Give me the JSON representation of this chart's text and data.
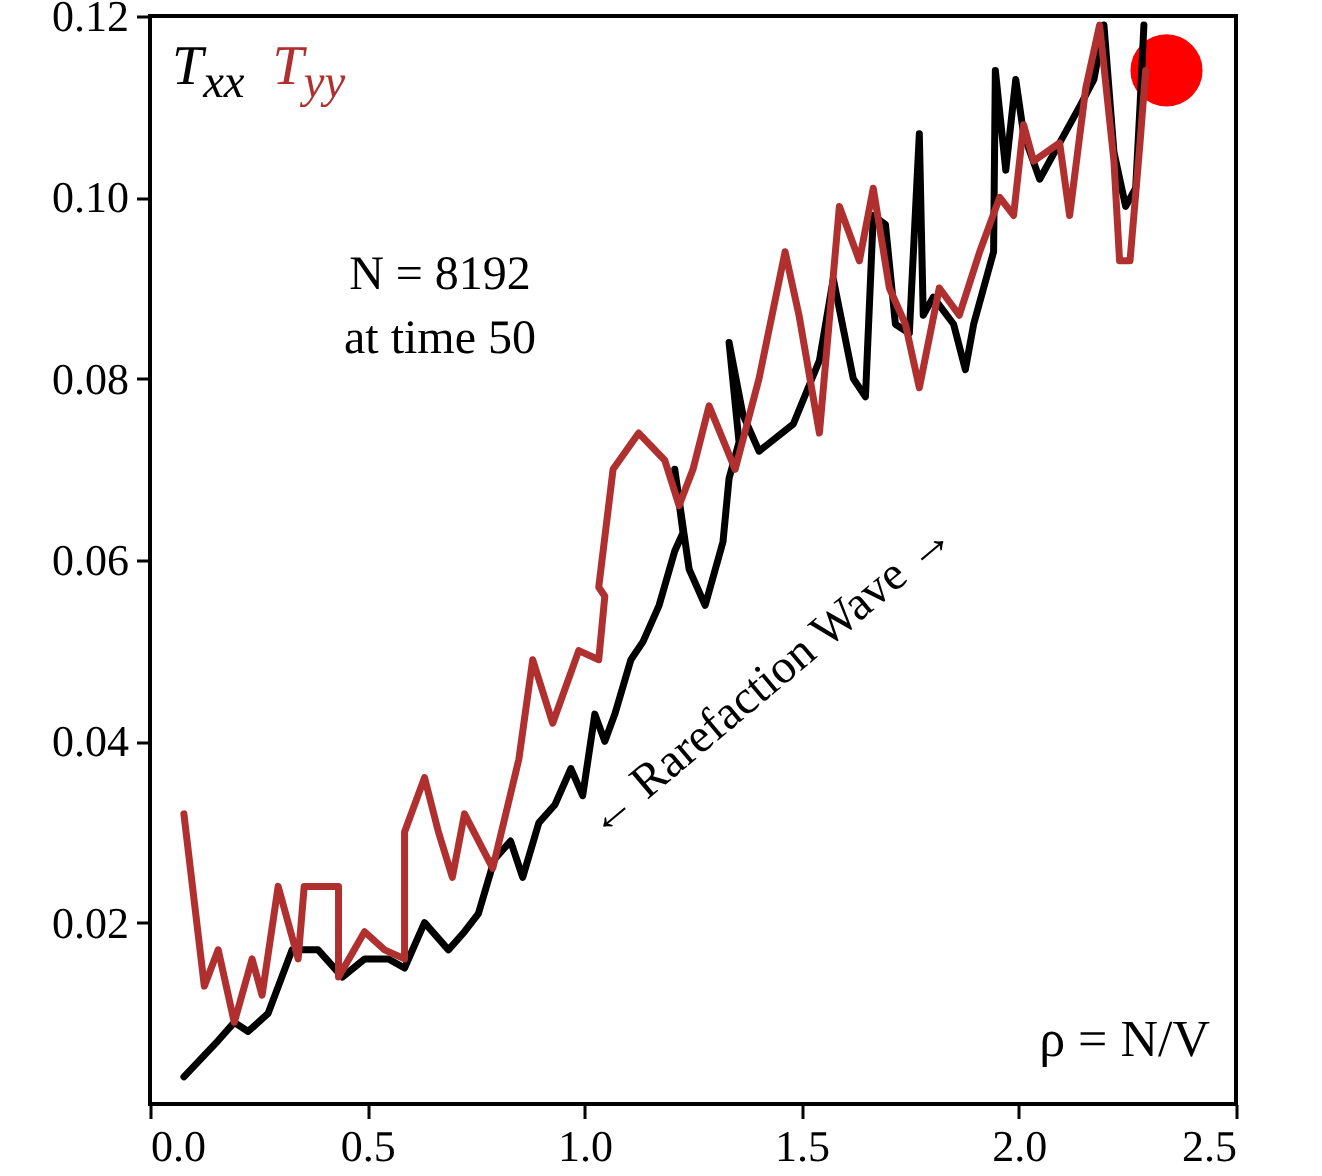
{
  "chart_data": {
    "type": "line",
    "xlabel": "ρ = N/V",
    "legend": "top left",
    "grid": false,
    "annotations": [
      "N = 8192",
      "at time 50",
      "← Rarefaction Wave →"
    ],
    "xlim": [
      0,
      2.5
    ],
    "ylim": [
      0,
      0.12
    ],
    "xticks": [
      {
        "value": 0,
        "label": "0.0"
      },
      {
        "value": 0.5,
        "label": "0.5"
      },
      {
        "value": 1,
        "label": "1.0"
      },
      {
        "value": 1.5,
        "label": "1.5"
      },
      {
        "value": 2,
        "label": "2.0"
      },
      {
        "value": 2.5,
        "label": "2.5"
      }
    ],
    "yticks": [
      {
        "value": 0.02,
        "label": "0.02"
      },
      {
        "value": 0.04,
        "label": "0.04"
      },
      {
        "value": 0.06,
        "label": "0.06"
      },
      {
        "value": 0.08,
        "label": "0.08"
      },
      {
        "value": 0.1,
        "label": "0.10"
      },
      {
        "value": 0.12,
        "label": "0.12"
      }
    ],
    "series": [
      {
        "name": "T$_{xx}$",
        "color": "#000000",
        "x": [
          0.078,
          0.157,
          0.194,
          0.226,
          0.272,
          0.327,
          0.387,
          0.443,
          0.494,
          0.549,
          0.586,
          0.632,
          0.687,
          0.724,
          0.756,
          0.793,
          0.83,
          0.858,
          0.895,
          0.932,
          0.969,
          0.996,
          1.024,
          1.047,
          1.07,
          1.107,
          1.135,
          1.172,
          1.208,
          1.227,
          1.208,
          1.241,
          1.278,
          1.319,
          1.333,
          1.356,
          1.333,
          1.365,
          1.402,
          1.481,
          1.541,
          1.573,
          1.619,
          1.647,
          1.665,
          1.693,
          1.716,
          1.748,
          1.771,
          1.78,
          1.803,
          1.85,
          1.877,
          1.896,
          1.942,
          1.946,
          1.97,
          1.993,
          2.011,
          2.048,
          2.094,
          2.14,
          2.173,
          2.196,
          2.219,
          2.246,
          2.269,
          2.279,
          2.288
        ],
        "values": [
          0.003,
          0.007,
          0.009,
          0.008,
          0.01,
          0.017,
          0.017,
          0.014,
          0.016,
          0.016,
          0.015,
          0.02,
          0.017,
          0.019,
          0.021,
          0.027,
          0.029,
          0.025,
          0.031,
          0.033,
          0.037,
          0.034,
          0.043,
          0.04,
          0.043,
          0.049,
          0.051,
          0.055,
          0.061,
          0.063,
          0.07,
          0.059,
          0.055,
          0.062,
          0.069,
          0.073,
          0.084,
          0.076,
          0.072,
          0.075,
          0.082,
          0.091,
          0.08,
          0.078,
          0.098,
          0.097,
          0.086,
          0.085,
          0.107,
          0.087,
          0.089,
          0.086,
          0.081,
          0.086,
          0.094,
          0.114,
          0.103,
          0.113,
          0.107,
          0.102,
          0.106,
          0.11,
          0.113,
          0.119,
          0.105,
          0.099,
          0.101,
          0.11,
          0.119
        ]
      },
      {
        "name": "T$_{yy}$",
        "color": "#b03030",
        "x": [
          0.078,
          0.125,
          0.157,
          0.194,
          0.235,
          0.258,
          0.295,
          0.341,
          0.355,
          0.434,
          0.434,
          0.494,
          0.54,
          0.586,
          0.586,
          0.632,
          0.664,
          0.696,
          0.724,
          0.789,
          0.849,
          0.881,
          0.927,
          0.987,
          1.033,
          1.047,
          1.033,
          1.066,
          1.125,
          1.185,
          1.218,
          1.25,
          1.287,
          1.347,
          1.402,
          1.462,
          1.494,
          1.541,
          1.587,
          1.633,
          1.665,
          1.702,
          1.739,
          1.771,
          1.817,
          1.863,
          1.91,
          1.956,
          1.988,
          2.011,
          2.034,
          2.094,
          2.117,
          2.154,
          2.186,
          2.219,
          2.232,
          2.256,
          2.279,
          2.292
        ],
        "values": [
          0.032,
          0.013,
          0.017,
          0.009,
          0.016,
          0.012,
          0.024,
          0.016,
          0.024,
          0.024,
          0.014,
          0.019,
          0.017,
          0.016,
          0.03,
          0.036,
          0.03,
          0.025,
          0.032,
          0.026,
          0.038,
          0.049,
          0.042,
          0.05,
          0.049,
          0.056,
          0.057,
          0.07,
          0.074,
          0.071,
          0.066,
          0.07,
          0.077,
          0.07,
          0.08,
          0.094,
          0.087,
          0.074,
          0.099,
          0.093,
          0.101,
          0.09,
          0.086,
          0.079,
          0.09,
          0.087,
          0.094,
          0.1,
          0.098,
          0.108,
          0.104,
          0.106,
          0.098,
          0.112,
          0.119,
          0.104,
          0.093,
          0.093,
          0.106,
          0.114
        ]
      },
      {
        "type": "scatter",
        "color": "#ff0000",
        "x": [
          2.34
        ],
        "values": [
          0.114
        ]
      }
    ]
  }
}
